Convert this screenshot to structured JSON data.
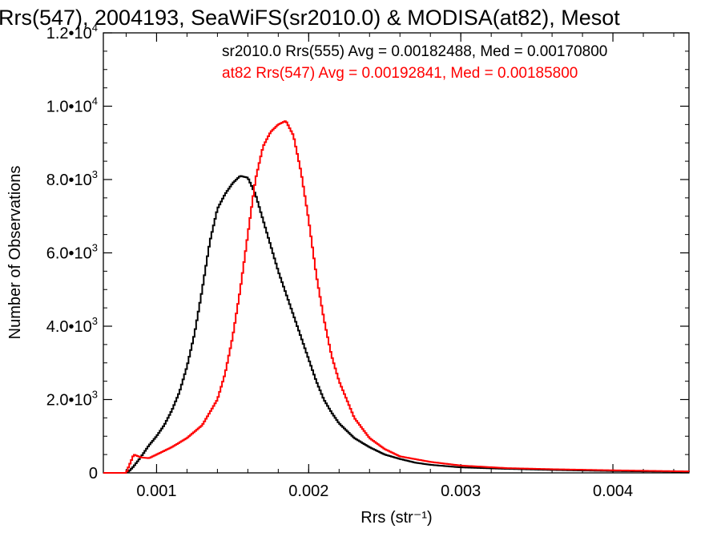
{
  "chart_data": {
    "type": "line",
    "title": "Rrs(547), 2004193, SeaWiFS(sr2010.0) & MODISA(at82), Mesot",
    "xlabel": "Rrs (str⁻¹)",
    "ylabel": "Number of Observations",
    "xlim": [
      0.00065,
      0.0045
    ],
    "ylim": [
      0,
      12000
    ],
    "grid": false,
    "legend_position": "top-right",
    "x_ticks": [
      {
        "value": 0.001,
        "label": "0.001"
      },
      {
        "value": 0.002,
        "label": "0.002"
      },
      {
        "value": 0.003,
        "label": "0.003"
      },
      {
        "value": 0.004,
        "label": "0.004"
      }
    ],
    "y_ticks": [
      {
        "value": 0,
        "mantissa": "0",
        "exponent": ""
      },
      {
        "value": 2000,
        "mantissa": "2.0•10",
        "exponent": "3"
      },
      {
        "value": 4000,
        "mantissa": "4.0•10",
        "exponent": "3"
      },
      {
        "value": 6000,
        "mantissa": "6.0•10",
        "exponent": "3"
      },
      {
        "value": 8000,
        "mantissa": "8.0•10",
        "exponent": "3"
      },
      {
        "value": 10000,
        "mantissa": "1.0•10",
        "exponent": "4"
      },
      {
        "value": 12000,
        "mantissa": "1.2•10",
        "exponent": "4"
      }
    ],
    "series": [
      {
        "name": "sr2010.0 Rrs(555) Avg = 0.00182488, Med = 0.00170800",
        "color": "#000000",
        "x": [
          0.0008,
          0.00082,
          0.00085,
          0.0009,
          0.00095,
          0.001,
          0.00105,
          0.0011,
          0.00115,
          0.0012,
          0.00125,
          0.0013,
          0.00135,
          0.0014,
          0.00145,
          0.0015,
          0.00155,
          0.0016,
          0.00165,
          0.0017,
          0.00175,
          0.0018,
          0.00185,
          0.0019,
          0.00195,
          0.002,
          0.00205,
          0.0021,
          0.00215,
          0.0022,
          0.0023,
          0.0024,
          0.0025,
          0.0026,
          0.0027,
          0.0028,
          0.003,
          0.0033,
          0.0036,
          0.004,
          0.0045
        ],
        "y": [
          0,
          50,
          180,
          450,
          750,
          1000,
          1300,
          1700,
          2200,
          2900,
          3800,
          5000,
          6300,
          7200,
          7600,
          7900,
          8100,
          8050,
          7600,
          6900,
          6200,
          5500,
          4900,
          4300,
          3700,
          3100,
          2500,
          2000,
          1650,
          1350,
          950,
          700,
          500,
          380,
          280,
          220,
          150,
          110,
          80,
          50,
          30
        ]
      },
      {
        "name": "at82 Rrs(547) Avg = 0.00192841, Med = 0.00185800",
        "color": "#ff0000",
        "x": [
          0.0008,
          0.00082,
          0.00085,
          0.0009,
          0.00095,
          0.001,
          0.0011,
          0.0012,
          0.0013,
          0.0014,
          0.00145,
          0.0015,
          0.00155,
          0.0016,
          0.00165,
          0.0017,
          0.00175,
          0.0018,
          0.00185,
          0.0019,
          0.00195,
          0.002,
          0.00205,
          0.0021,
          0.00215,
          0.0022,
          0.0023,
          0.0024,
          0.0025,
          0.0026,
          0.0028,
          0.003,
          0.0033,
          0.0036,
          0.004,
          0.0045
        ],
        "y": [
          0,
          200,
          500,
          420,
          400,
          500,
          700,
          950,
          1300,
          2000,
          2700,
          3700,
          5000,
          6500,
          8000,
          8900,
          9300,
          9500,
          9600,
          9200,
          8200,
          6900,
          5400,
          4200,
          3200,
          2500,
          1500,
          950,
          650,
          450,
          300,
          200,
          130,
          100,
          70,
          40
        ]
      }
    ]
  }
}
